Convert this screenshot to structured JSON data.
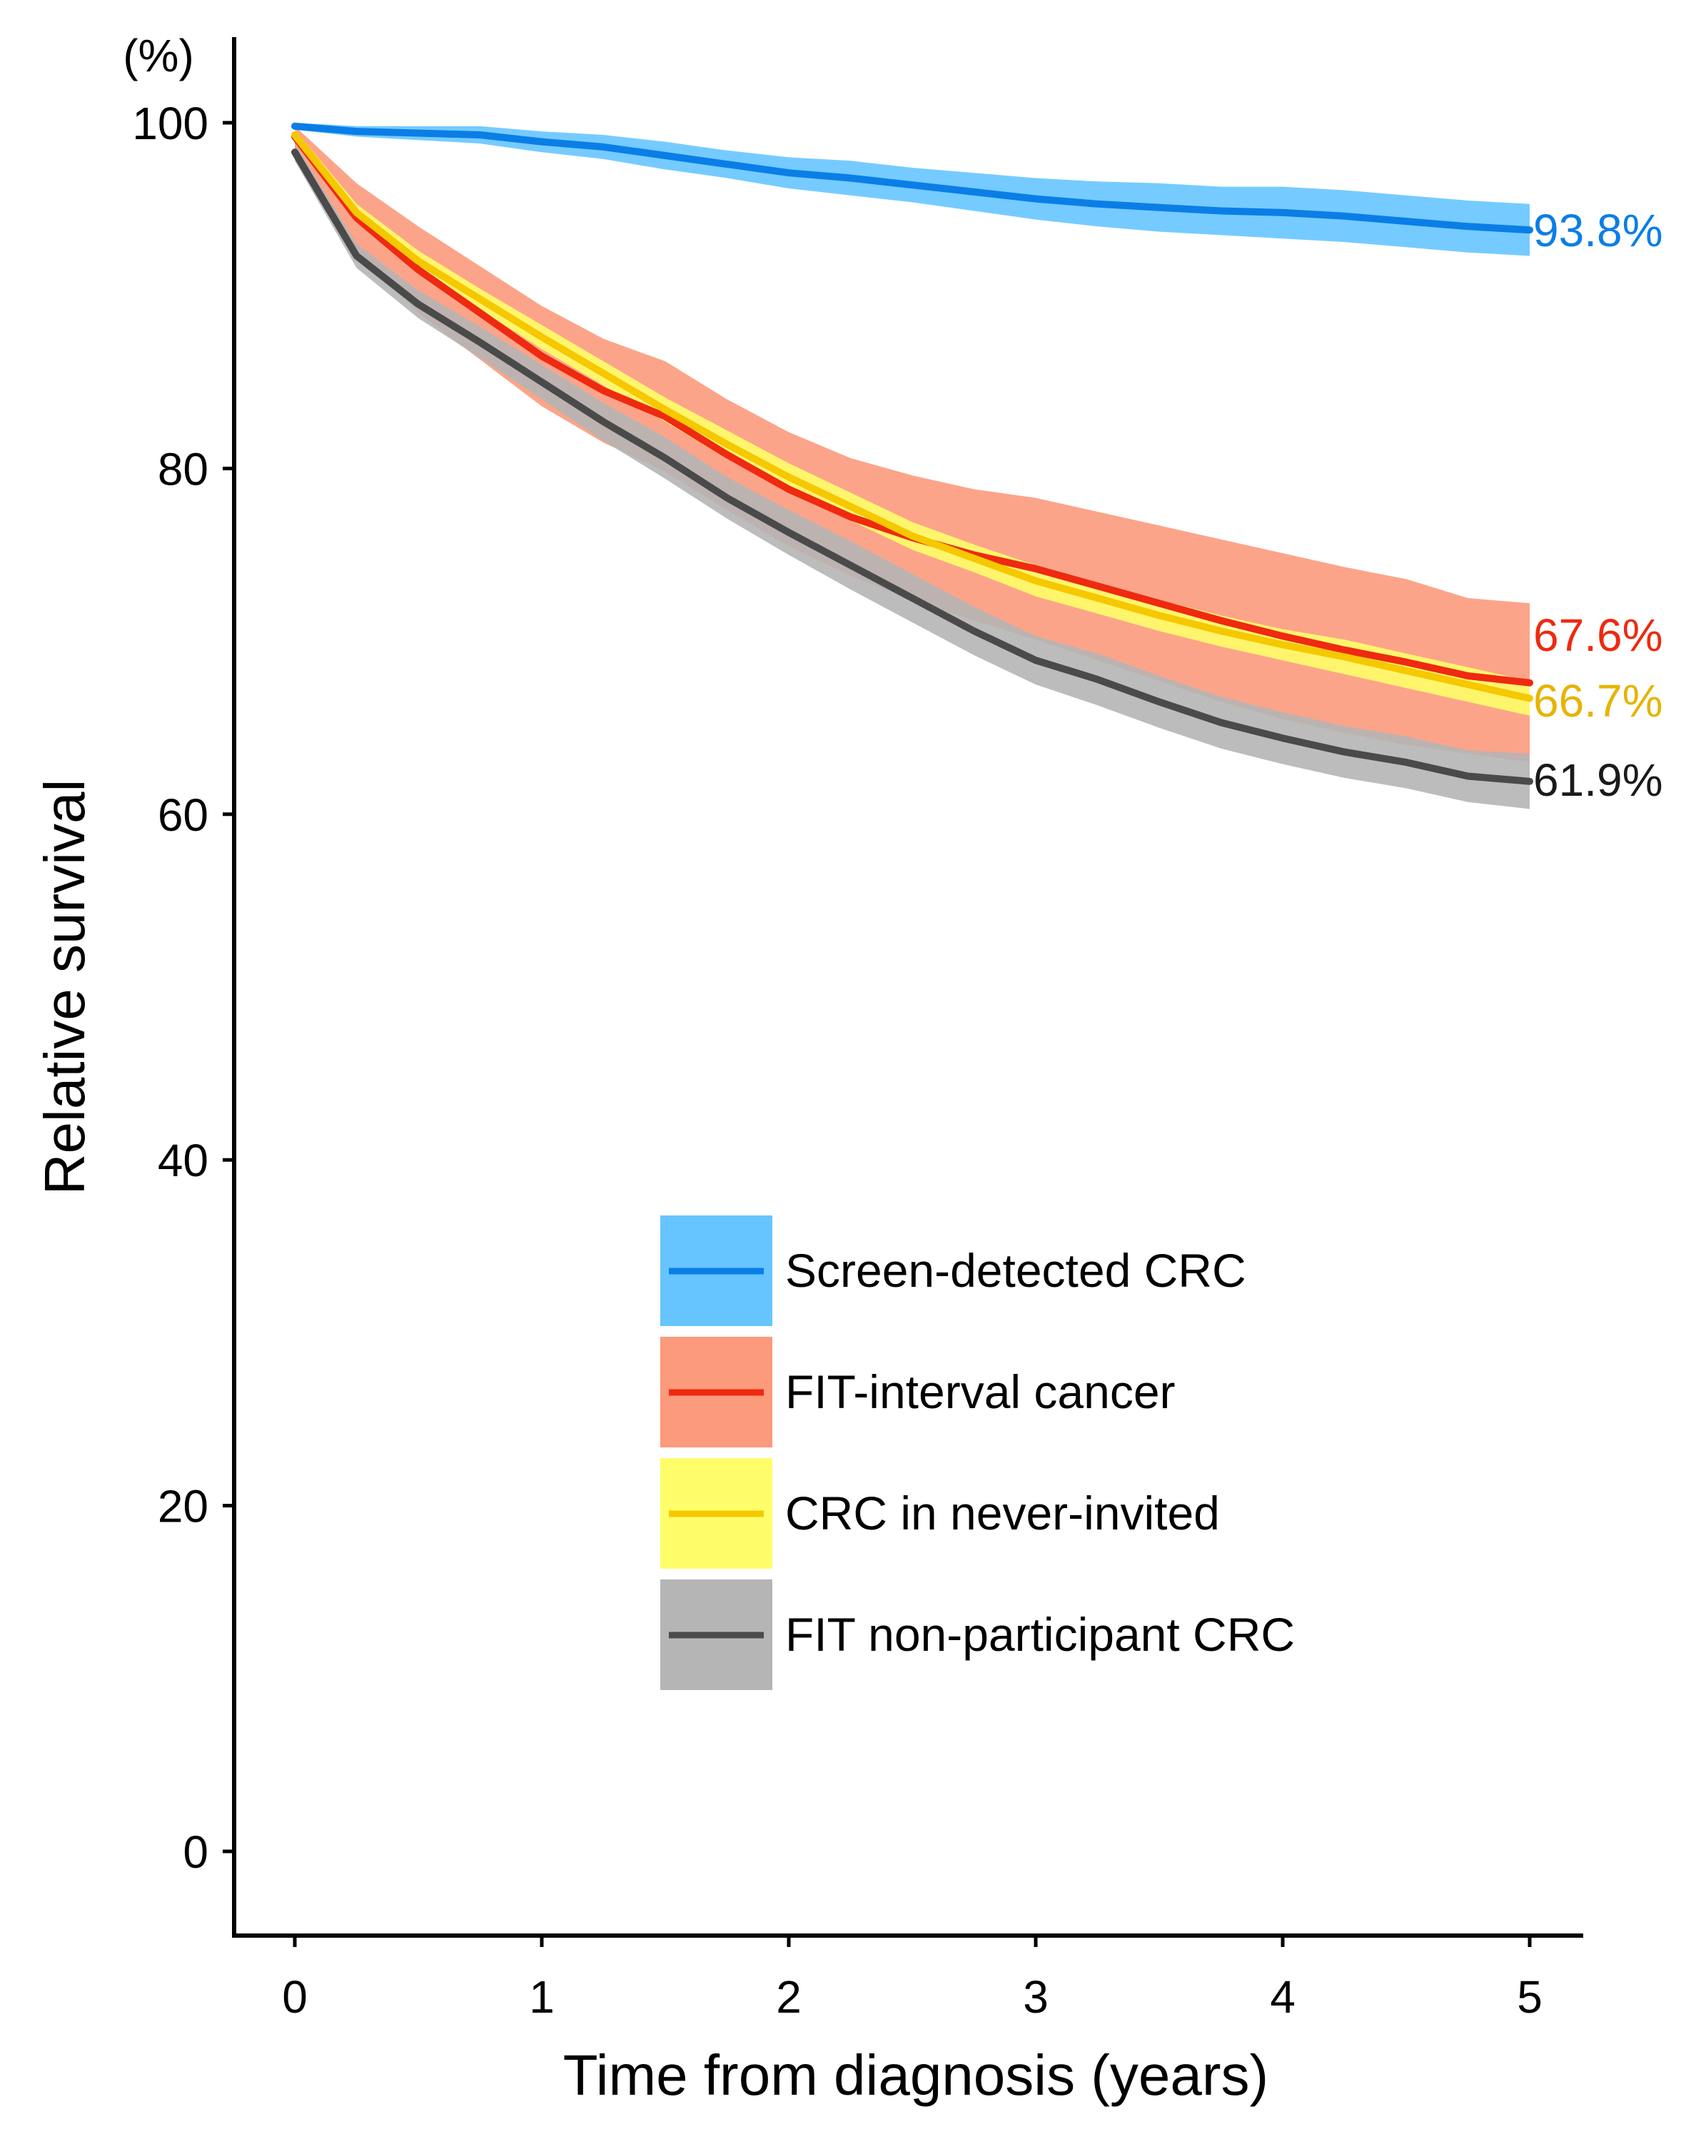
{
  "chart_data": {
    "type": "line",
    "title": "",
    "xlabel": "Time from diagnosis (years)",
    "ylabel": "Relative survival",
    "yunit": "(%)",
    "xlim": [
      -0.25,
      5.2
    ],
    "ylim": [
      -4,
      105
    ],
    "xticks": [
      0,
      1,
      2,
      3,
      4,
      5
    ],
    "yticks": [
      0,
      20,
      40,
      60,
      80,
      100
    ],
    "grid": false,
    "legend_position": "center-right",
    "series": [
      {
        "name": "Screen-detected CRC",
        "line_color": "#0a7ee6",
        "band_color": "#66c5ff",
        "end_label": "93.8%",
        "label_color": "#0a7ee6",
        "x": [
          0,
          0.25,
          0.5,
          0.75,
          1,
          1.25,
          1.5,
          1.75,
          2,
          2.25,
          2.5,
          2.75,
          3,
          3.25,
          3.5,
          3.75,
          4,
          4.25,
          4.5,
          4.75,
          5
        ],
        "y": [
          99.8,
          99.5,
          99.4,
          99.3,
          98.9,
          98.6,
          98.1,
          97.6,
          97.1,
          96.8,
          96.4,
          96.0,
          95.6,
          95.3,
          95.1,
          94.9,
          94.8,
          94.6,
          94.3,
          94.0,
          93.8
        ],
        "lower": [
          99.6,
          99.2,
          99.0,
          98.8,
          98.3,
          97.9,
          97.3,
          96.8,
          96.2,
          95.8,
          95.4,
          94.9,
          94.4,
          94.0,
          93.7,
          93.5,
          93.3,
          93.1,
          92.8,
          92.5,
          92.3
        ],
        "upper": [
          100.0,
          99.8,
          99.8,
          99.8,
          99.5,
          99.3,
          98.9,
          98.4,
          98.0,
          97.8,
          97.4,
          97.1,
          96.8,
          96.6,
          96.5,
          96.3,
          96.3,
          96.1,
          95.8,
          95.5,
          95.3
        ]
      },
      {
        "name": "FIT-interval cancer",
        "line_color": "#ee2a10",
        "band_color": "#fc9a7c",
        "end_label": "67.6%",
        "label_color": "#ee2a10",
        "x": [
          0,
          0.25,
          0.5,
          0.75,
          1,
          1.25,
          1.5,
          1.75,
          2,
          2.25,
          2.5,
          2.75,
          3,
          3.25,
          3.5,
          3.75,
          4,
          4.25,
          4.5,
          4.75,
          5
        ],
        "y": [
          99.2,
          94.5,
          91.5,
          89.0,
          86.5,
          84.5,
          83.0,
          80.8,
          78.8,
          77.2,
          76.0,
          75.0,
          74.2,
          73.2,
          72.2,
          71.2,
          70.3,
          69.5,
          68.8,
          68.0,
          67.6
        ],
        "lower": [
          98.6,
          92.5,
          89.0,
          86.3,
          83.6,
          81.5,
          79.8,
          77.6,
          75.5,
          73.8,
          72.4,
          71.2,
          70.1,
          68.9,
          67.7,
          66.5,
          65.5,
          64.7,
          64.0,
          63.5,
          63.0
        ],
        "upper": [
          99.8,
          96.5,
          94.0,
          91.7,
          89.4,
          87.5,
          86.2,
          84.0,
          82.1,
          80.6,
          79.6,
          78.8,
          78.3,
          77.5,
          76.7,
          75.9,
          75.1,
          74.3,
          73.6,
          72.5,
          72.2
        ]
      },
      {
        "name": "CRC in never-invited",
        "line_color": "#f5c800",
        "band_color": "#fffe6a",
        "end_label": "66.7%",
        "label_color": "#e6b400",
        "x": [
          0,
          0.25,
          0.5,
          0.75,
          1,
          1.25,
          1.5,
          1.75,
          2,
          2.25,
          2.5,
          2.75,
          3,
          3.25,
          3.5,
          3.75,
          4,
          4.25,
          4.5,
          4.75,
          5
        ],
        "y": [
          99.3,
          94.8,
          92.0,
          89.8,
          87.6,
          85.5,
          83.4,
          81.4,
          79.5,
          77.8,
          76.1,
          74.8,
          73.5,
          72.5,
          71.5,
          70.6,
          69.8,
          69.1,
          68.3,
          67.5,
          66.7
        ],
        "lower": [
          99.0,
          94.3,
          91.4,
          89.2,
          86.9,
          84.8,
          82.7,
          80.6,
          78.7,
          77.0,
          75.3,
          74.0,
          72.6,
          71.6,
          70.6,
          69.7,
          68.9,
          68.1,
          67.3,
          66.5,
          65.7
        ],
        "upper": [
          99.6,
          95.3,
          92.6,
          90.4,
          88.3,
          86.2,
          84.1,
          82.2,
          80.3,
          78.6,
          76.9,
          75.6,
          74.4,
          73.4,
          72.4,
          71.5,
          70.7,
          70.1,
          69.3,
          68.5,
          67.7
        ]
      },
      {
        "name": "FIT non-participant CRC",
        "line_color": "#4a4a4a",
        "band_color": "#b5b5b5",
        "end_label": "61.9%",
        "label_color": "#1a1a1a",
        "x": [
          0,
          0.25,
          0.5,
          0.75,
          1,
          1.25,
          1.5,
          1.75,
          2,
          2.25,
          2.5,
          2.75,
          3,
          3.25,
          3.5,
          3.75,
          4,
          4.25,
          4.5,
          4.75,
          5
        ],
        "y": [
          98.3,
          92.3,
          89.5,
          87.3,
          85.0,
          82.7,
          80.6,
          78.3,
          76.3,
          74.4,
          72.5,
          70.6,
          68.9,
          67.8,
          66.5,
          65.3,
          64.4,
          63.6,
          63.0,
          62.2,
          61.9
        ],
        "lower": [
          97.8,
          91.6,
          88.7,
          86.4,
          84.0,
          81.6,
          79.4,
          77.1,
          75.0,
          73.0,
          71.1,
          69.2,
          67.5,
          66.3,
          65.0,
          63.8,
          62.9,
          62.1,
          61.5,
          60.7,
          60.3
        ],
        "upper": [
          98.8,
          93.0,
          90.3,
          88.2,
          86.0,
          83.8,
          81.8,
          79.5,
          77.6,
          75.8,
          73.9,
          72.0,
          70.3,
          69.3,
          68.0,
          66.8,
          65.9,
          65.1,
          64.5,
          63.7,
          63.5
        ]
      }
    ]
  }
}
